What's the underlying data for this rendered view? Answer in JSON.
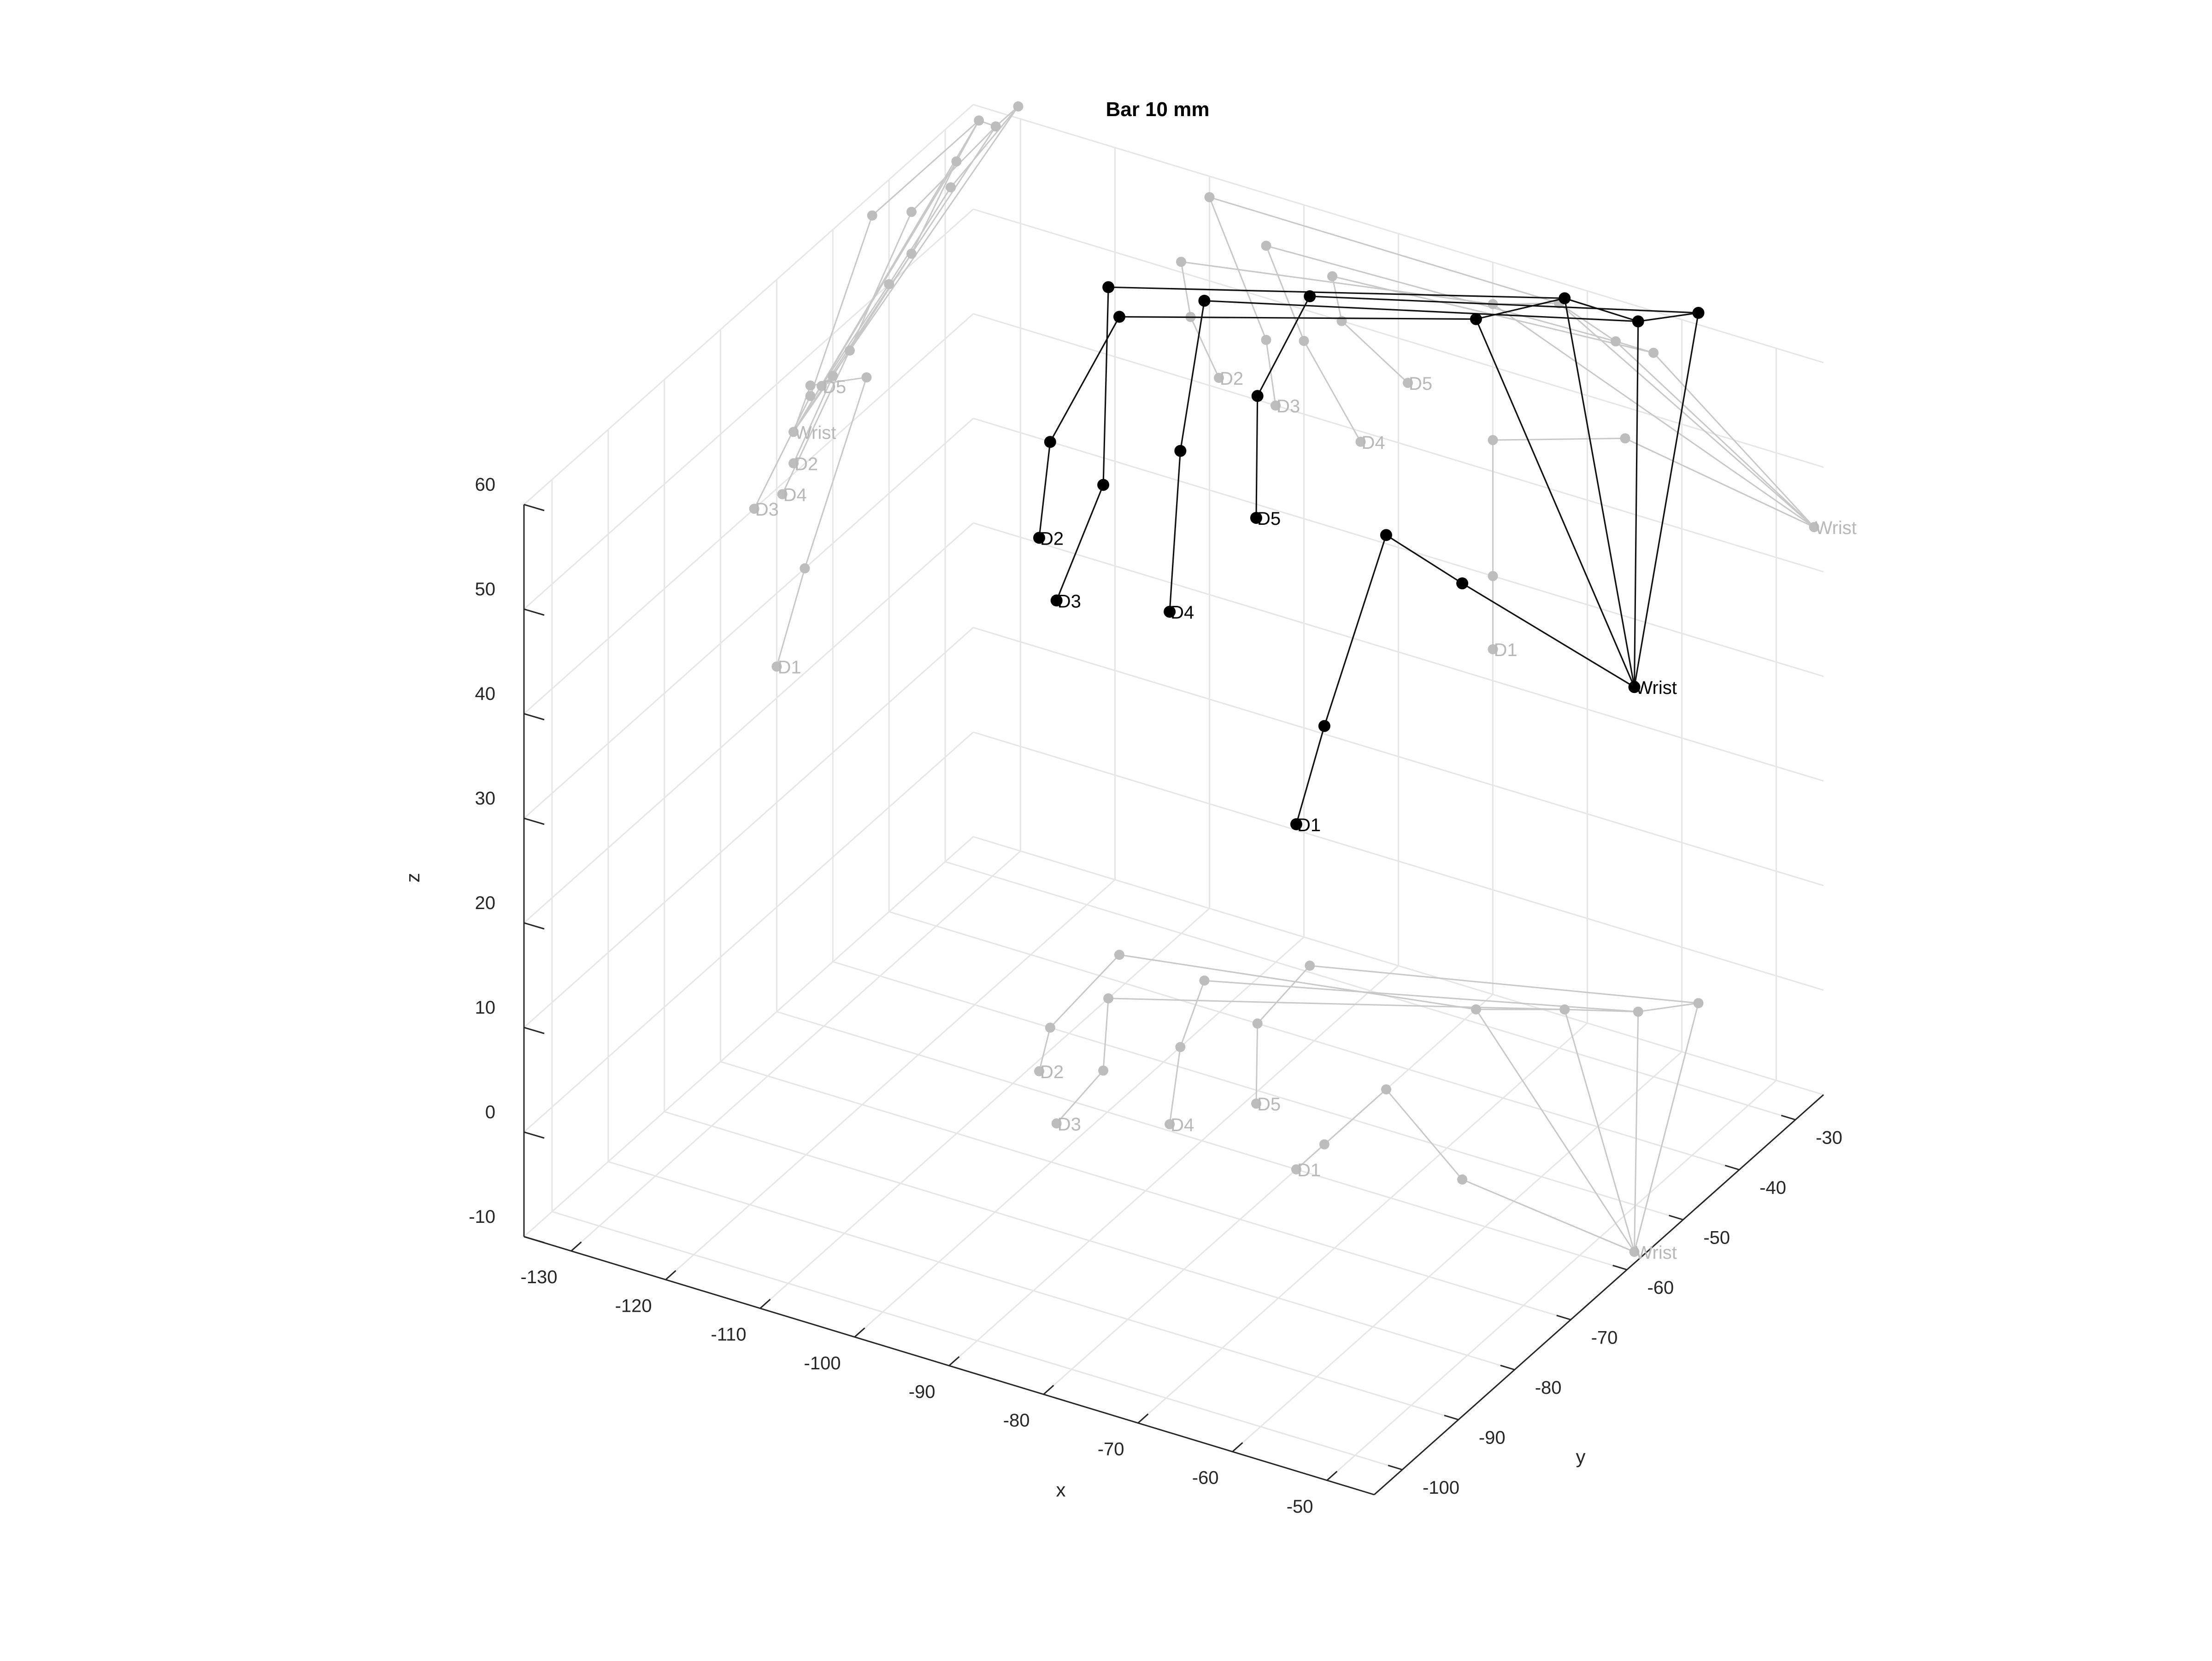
{
  "chart_data": {
    "type": "scatter",
    "title": "Bar 10 mm",
    "xlabel": "x",
    "ylabel": "y",
    "zlabel": "z",
    "xlim": [
      -135,
      -45
    ],
    "ylim": [
      -105,
      -25
    ],
    "zlim": [
      -10,
      60
    ],
    "x_ticks": [
      "-130",
      "-120",
      "-110",
      "-100",
      "-90",
      "-80",
      "-70",
      "-60",
      "-50"
    ],
    "y_ticks": [
      "-30",
      "-40",
      "-50",
      "-60",
      "-70",
      "-80",
      "-90",
      "-100"
    ],
    "z_ticks": [
      "-10",
      "0",
      "10",
      "20",
      "30",
      "40",
      "50",
      "60"
    ],
    "grid": true,
    "colors": {
      "joints": "#000000",
      "projections": "#bdbdbd"
    },
    "joints": {
      "Wrist": [
        -46,
        -57,
        44
      ],
      "D1_mcp": [
        -66,
        -54,
        47
      ],
      "D1_pip": [
        -80,
        -44,
        43
      ],
      "D1_dip": [
        -80,
        -55,
        30
      ],
      "D1": [
        -80,
        -60,
        23
      ],
      "D2_mcp": [
        -80,
        -28,
        56
      ],
      "D2_pip": [
        -113,
        -36,
        51
      ],
      "D2_dip": [
        -112,
        -50,
        46
      ],
      "D2": [
        -109,
        -57,
        41
      ],
      "D3_mcp": [
        -73,
        -24,
        58
      ],
      "D3_pip": [
        -110,
        -43,
        58
      ],
      "D3_dip": [
        -104,
        -54,
        46
      ],
      "D3": [
        -103,
        -64,
        40
      ],
      "D4_mcp": [
        -67,
        -21,
        56
      ],
      "D4_pip": [
        -104,
        -36,
        55
      ],
      "D4_dip": [
        -100,
        -47,
        47
      ],
      "D4": [
        -94,
        -59,
        39
      ],
      "D5_mcp": [
        -63,
        -17,
        56
      ],
      "D5_pip": [
        -97,
        -29,
        54
      ],
      "D5_dip": [
        -96,
        -40,
        50
      ],
      "D5": [
        -89,
        -52,
        46
      ]
    },
    "bones": [
      [
        "Wrist",
        "D1_mcp"
      ],
      [
        "D1_mcp",
        "D1_pip"
      ],
      [
        "D1_pip",
        "D1_dip"
      ],
      [
        "D1_dip",
        "D1"
      ],
      [
        "Wrist",
        "D2_mcp"
      ],
      [
        "D2_mcp",
        "D2_pip"
      ],
      [
        "D2_pip",
        "D2_dip"
      ],
      [
        "D2_dip",
        "D2"
      ],
      [
        "Wrist",
        "D3_mcp"
      ],
      [
        "D3_mcp",
        "D3_pip"
      ],
      [
        "D3_pip",
        "D3_dip"
      ],
      [
        "D3_dip",
        "D3"
      ],
      [
        "Wrist",
        "D4_mcp"
      ],
      [
        "D4_mcp",
        "D4_pip"
      ],
      [
        "D4_pip",
        "D4_dip"
      ],
      [
        "D4_dip",
        "D4"
      ],
      [
        "Wrist",
        "D5_mcp"
      ],
      [
        "D5_mcp",
        "D5_pip"
      ],
      [
        "D5_pip",
        "D5_dip"
      ],
      [
        "D5_dip",
        "D5"
      ],
      [
        "D2_mcp",
        "D3_mcp"
      ],
      [
        "D3_mcp",
        "D4_mcp"
      ],
      [
        "D4_mcp",
        "D5_mcp"
      ]
    ],
    "labels": [
      "Wrist",
      "D1",
      "D2",
      "D3",
      "D4",
      "D5"
    ]
  }
}
